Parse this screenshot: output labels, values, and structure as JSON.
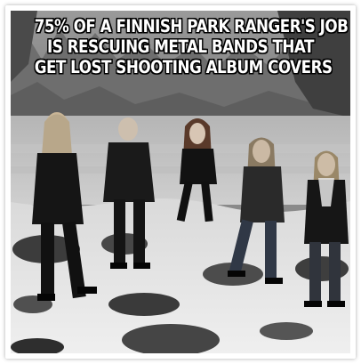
{
  "meme": {
    "caption_lines": [
      "75% OF A FINNISH PARK RANGER'S JOB",
      "IS RESCUING METAL BANDS THAT",
      "GET LOST SHOOTING ALBUM COVERS"
    ],
    "photo_description_icon": "band-photo-snowy-lake"
  }
}
